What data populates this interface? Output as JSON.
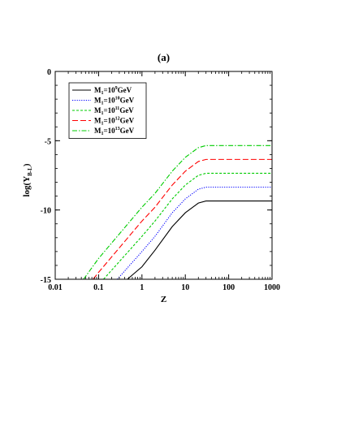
{
  "chart_data": {
    "type": "line",
    "title": "(a)",
    "xlabel": "Z",
    "ylabel": "log(Y",
    "ylabel_subscript": "B-L",
    "ylabel_suffix": ")",
    "xscale": "log",
    "xlim": [
      0.01,
      1000
    ],
    "ylim": [
      -15,
      0
    ],
    "x_ticks": [
      0.01,
      0.1,
      1,
      10,
      100,
      1000
    ],
    "x_tick_labels": [
      "0.01",
      "0.1",
      "1",
      "10",
      "100",
      "1000"
    ],
    "y_ticks": [
      0,
      -5,
      -10,
      -15
    ],
    "y_tick_labels": [
      "0",
      "-5",
      "-10",
      "-15"
    ],
    "grid": false,
    "legend_position": "top-left",
    "series": [
      {
        "label_base": "M",
        "label_sub": "1",
        "label_mid": "=10",
        "label_sup": "9",
        "label_unit": "GeV",
        "color": "#000000",
        "dash": "solid",
        "x": [
          0.46,
          1,
          2,
          5,
          10,
          20,
          30,
          50,
          100,
          1000
        ],
        "y": [
          -15,
          -14.1,
          -12.9,
          -11.2,
          -10.2,
          -9.5,
          -9.35,
          -9.35,
          -9.35,
          -9.35
        ]
      },
      {
        "label_base": "M",
        "label_sub": "1",
        "label_mid": "=10",
        "label_sup": "10",
        "label_unit": "GeV",
        "color": "#0000ff",
        "dash": "dotted",
        "x": [
          0.27,
          1,
          2,
          5,
          10,
          20,
          30,
          50,
          100,
          1000
        ],
        "y": [
          -15,
          -13,
          -11.9,
          -10.2,
          -9.2,
          -8.5,
          -8.35,
          -8.35,
          -8.35,
          -8.35
        ]
      },
      {
        "label_base": "M",
        "label_sub": "1",
        "label_mid": "=10",
        "label_sup": "11",
        "label_unit": "GeV",
        "color": "#00cc00",
        "dash": "dashed-short",
        "x": [
          0.13,
          1,
          2,
          5,
          10,
          20,
          30,
          50,
          100,
          1000
        ],
        "y": [
          -15,
          -11.9,
          -10.8,
          -9.2,
          -8.2,
          -7.5,
          -7.35,
          -7.35,
          -7.35,
          -7.35
        ]
      },
      {
        "label_base": "M",
        "label_sub": "1",
        "label_mid": "=10",
        "label_sup": "12",
        "label_unit": "GeV",
        "color": "#ff0000",
        "dash": "dashed-long",
        "x": [
          0.075,
          0.1,
          1,
          2,
          5,
          10,
          20,
          30,
          50,
          100,
          1000
        ],
        "y": [
          -15,
          -14.5,
          -10.8,
          -9.8,
          -8.2,
          -7.2,
          -6.5,
          -6.35,
          -6.35,
          -6.35,
          -6.35
        ]
      },
      {
        "label_base": "M",
        "label_sub": "1",
        "label_mid": "=10",
        "label_sup": "13",
        "label_unit": "GeV",
        "color": "#00cc00",
        "dash": "dash-dot",
        "x": [
          0.045,
          0.1,
          1,
          2,
          5,
          10,
          20,
          30,
          50,
          100,
          1000
        ],
        "y": [
          -15,
          -13.5,
          -9.8,
          -8.8,
          -7.2,
          -6.2,
          -5.5,
          -5.35,
          -5.35,
          -5.35,
          -5.35
        ]
      }
    ]
  }
}
